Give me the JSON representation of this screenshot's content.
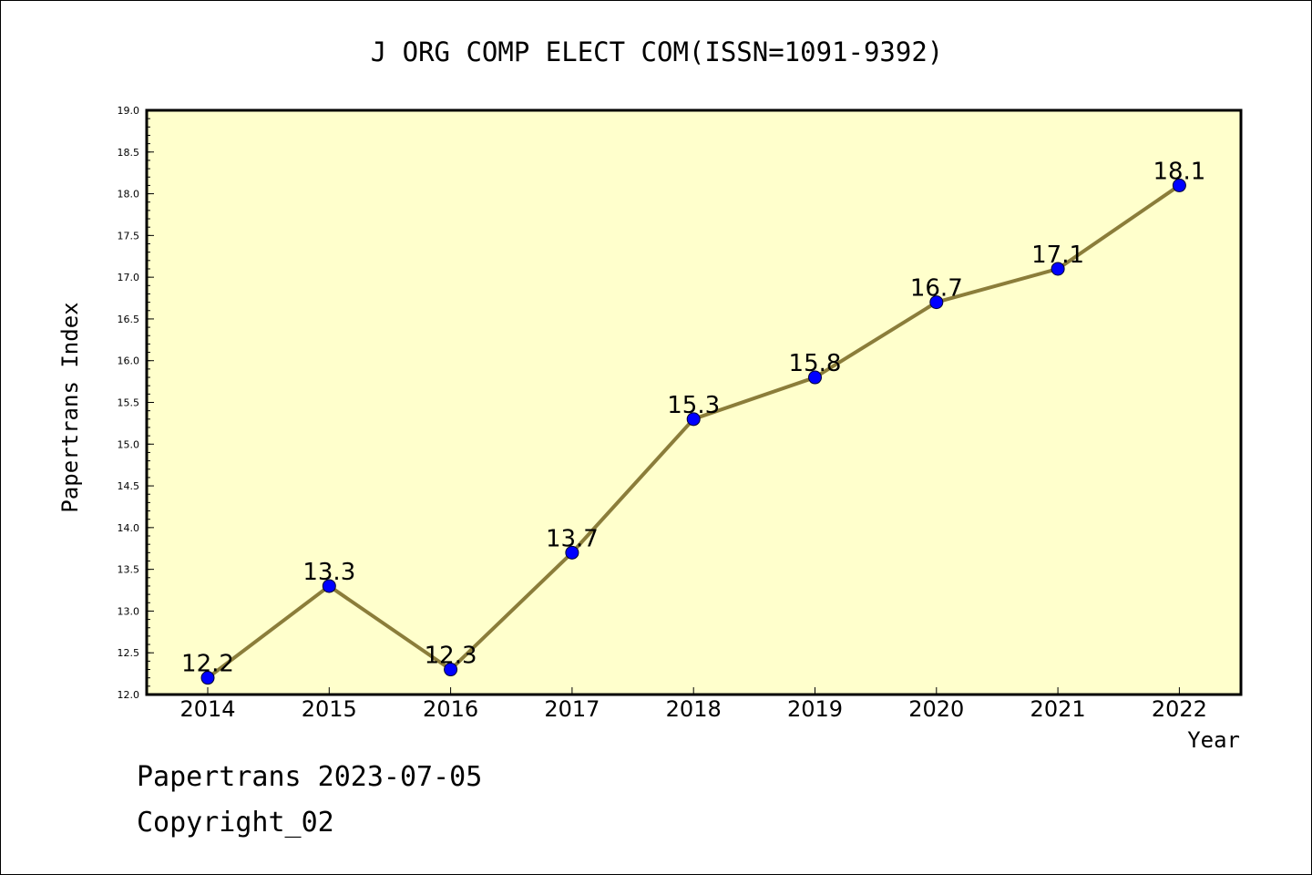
{
  "chart_data": {
    "type": "line",
    "title": "J ORG COMP ELECT COM(ISSN=1091-9392)",
    "xlabel": "Year",
    "ylabel": "Papertrans Index",
    "categories": [
      "2014",
      "2015",
      "2016",
      "2017",
      "2018",
      "2019",
      "2020",
      "2021",
      "2022"
    ],
    "series": [
      {
        "values": [
          12.2,
          13.3,
          12.3,
          13.7,
          15.3,
          15.8,
          16.7,
          17.1,
          18.1
        ],
        "data_labels": [
          "12.2",
          "13.3",
          "12.3",
          "13.7",
          "15.3",
          "15.8",
          "16.7",
          "17.1",
          "18.1"
        ]
      }
    ],
    "ylim": [
      12.0,
      19.0
    ],
    "yticks": [
      "12.0",
      "12.5",
      "13.0",
      "13.5",
      "14.0",
      "14.5",
      "15.0",
      "15.5",
      "16.0",
      "16.5",
      "17.0",
      "17.5",
      "18.0",
      "18.5",
      "19.0"
    ],
    "grid": false,
    "colors": {
      "plot_background": "#ffffcc",
      "line": "#8b7d3a",
      "marker": "#0000ff"
    }
  },
  "footer": {
    "date_line": "Papertrans 2023-07-05",
    "copyright": "Copyright_02"
  }
}
